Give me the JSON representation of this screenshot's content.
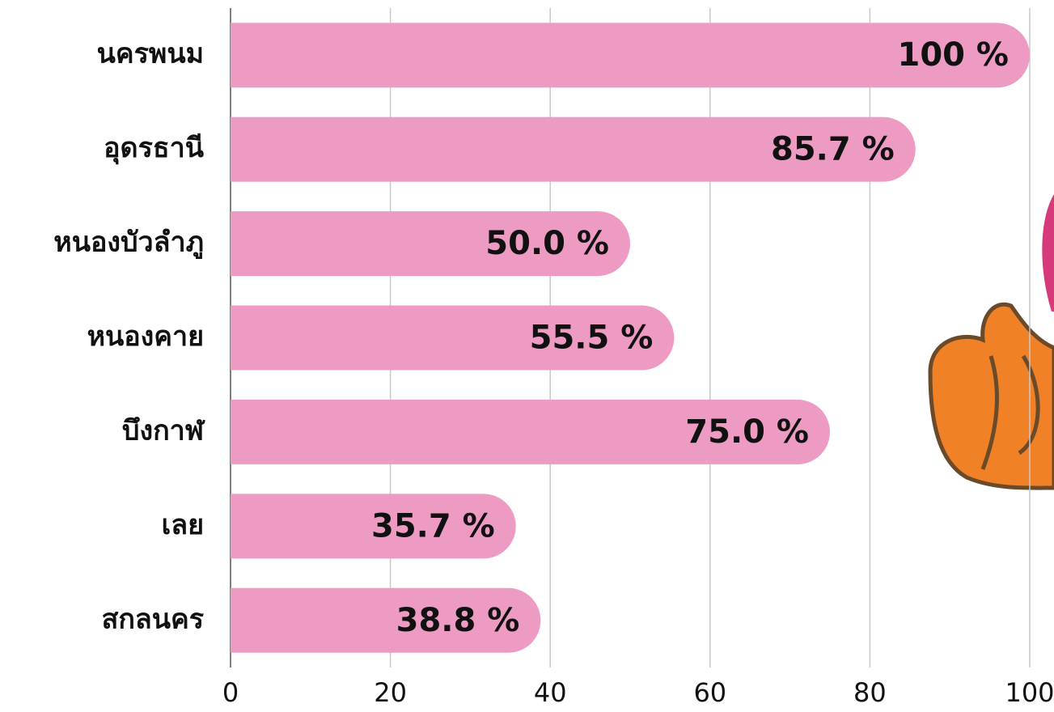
{
  "chart_data": {
    "type": "bar",
    "orientation": "horizontal",
    "categories": [
      "นครพนม",
      "อุดรธานี",
      "หนองบัวลำภู",
      "หนองคาย",
      "บึงกาฬ",
      "เลย",
      "สกลนคร"
    ],
    "values": [
      100,
      85.7,
      50.0,
      55.5,
      75.0,
      35.7,
      38.8
    ],
    "value_labels": [
      "100 %",
      "85.7 %",
      "50.0 %",
      "55.5 %",
      "75.0 %",
      "35.7 %",
      "38.8 %"
    ],
    "color": "#ed9bc3",
    "xlim": [
      0,
      100
    ],
    "xticks": [
      0,
      20,
      40,
      60,
      80,
      100
    ],
    "grid": true
  }
}
